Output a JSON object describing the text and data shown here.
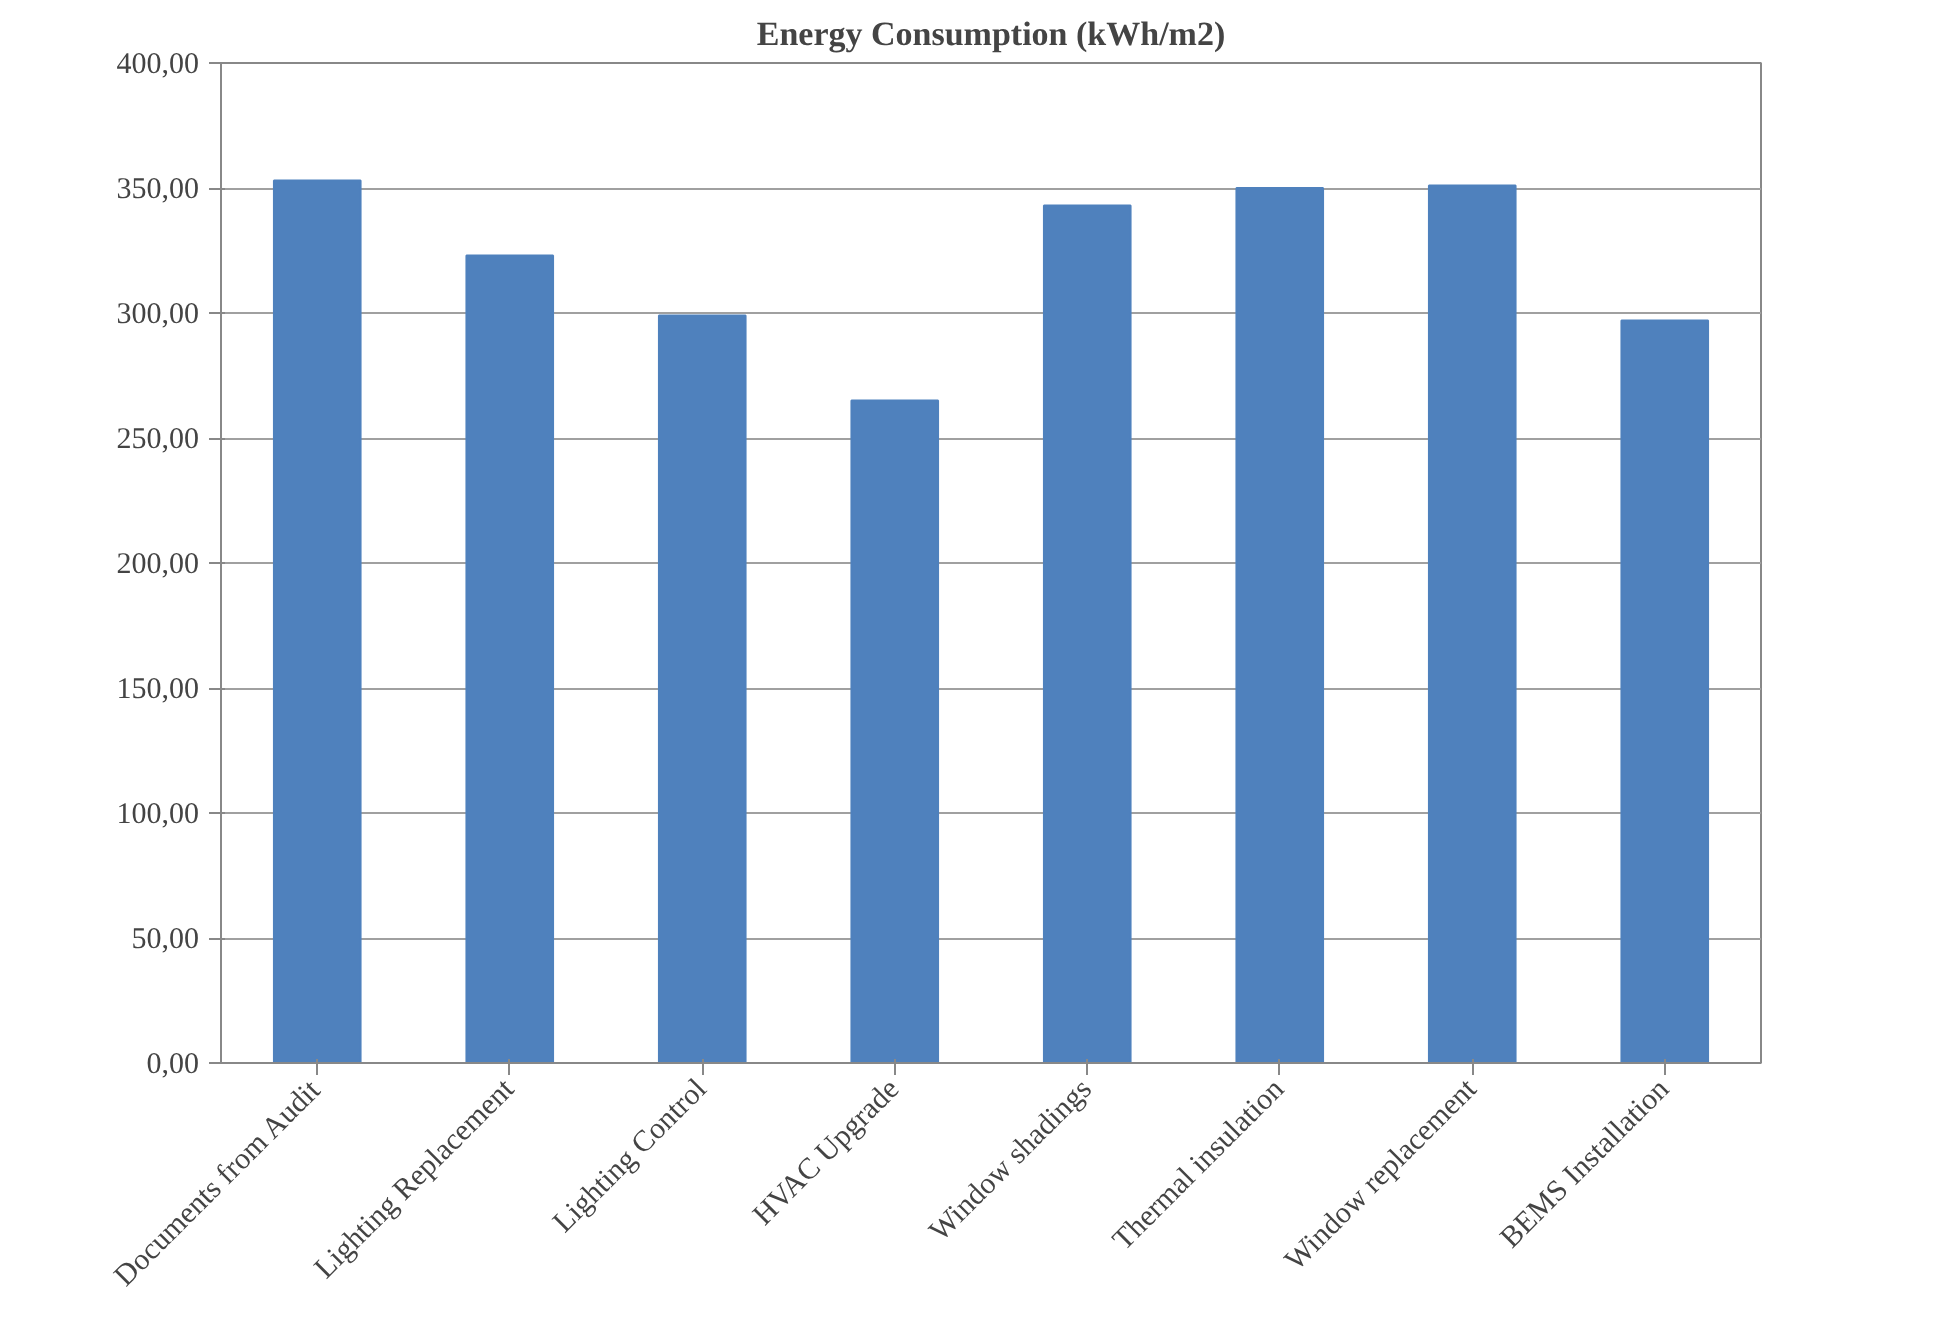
{
  "chart_data": {
    "type": "bar",
    "title": "Energy Consumption (kWh/m2)",
    "categories": [
      "Documents from Audit",
      "Lighting Replacement",
      "Lighting Control",
      "HVAC Upgrade",
      "Window shadings",
      "Thermal insulation",
      "Window replacement",
      "BEMS Installation"
    ],
    "values": [
      353,
      323,
      299,
      265,
      343,
      350,
      351,
      297
    ],
    "color": "#4f81bd",
    "ylim": [
      0,
      400
    ],
    "yticks": [
      {
        "value": 0,
        "label": "0,00"
      },
      {
        "value": 50,
        "label": "50,00"
      },
      {
        "value": 100,
        "label": "100,00"
      },
      {
        "value": 150,
        "label": "150,00"
      },
      {
        "value": 200,
        "label": "200,00"
      },
      {
        "value": 250,
        "label": "250,00"
      },
      {
        "value": 300,
        "label": "300,00"
      },
      {
        "value": 350,
        "label": "350,00"
      },
      {
        "value": 400,
        "label": "400,00"
      }
    ],
    "grid": "y"
  }
}
